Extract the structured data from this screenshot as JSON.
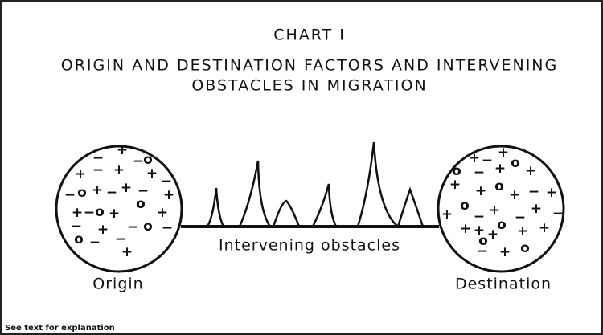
{
  "chart_number": "CHART I",
  "title_lines": [
    "ORIGIN AND DESTINATION FACTORS AND INTERVENING",
    "OBSTACLES IN MIGRATION"
  ],
  "origin": {
    "label": "Origin",
    "factors": [
      "−",
      "+",
      "−",
      "o",
      "+",
      "−",
      "+",
      "+",
      "−",
      "−",
      "o",
      "+",
      "−",
      "+",
      "−",
      "+",
      "+",
      "−",
      "o",
      "+",
      "o",
      "+",
      "−",
      "+",
      "−",
      "o",
      "−",
      "o",
      "−",
      "−",
      "+"
    ]
  },
  "destination": {
    "label": "Destination",
    "factors": [
      "o",
      "+",
      "−",
      "+",
      "o",
      "−",
      "+",
      "+",
      "+",
      "+",
      "o",
      "+",
      "−",
      "+",
      "+",
      "o",
      "−",
      "+",
      "−",
      "+",
      "−",
      "+",
      "+",
      "o",
      "+",
      "+",
      "o",
      "+",
      "−",
      "+",
      "o"
    ]
  },
  "obstacles_label": "Intervening obstacles",
  "footnote": "See text for explanation"
}
